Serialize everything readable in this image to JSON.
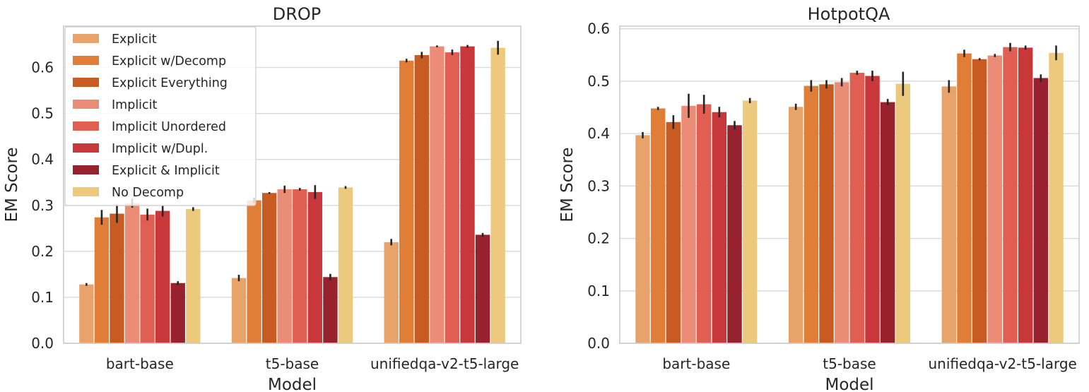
{
  "chart_data": [
    {
      "type": "bar",
      "title": "DROP",
      "xlabel": "Model",
      "ylabel": "EM Score",
      "ylim": [
        0,
        0.69
      ],
      "yticks": [
        "0.0",
        "0.1",
        "0.2",
        "0.3",
        "0.4",
        "0.5",
        "0.6"
      ],
      "grid": true,
      "legend_position": "top-left",
      "categories": [
        "bart-base",
        "t5-base",
        "unifiedqa-v2-t5-large"
      ],
      "series": [
        {
          "name": "Explicit",
          "color": "#E8A36A",
          "values": [
            0.128,
            0.142,
            0.22
          ],
          "errors": [
            0.003,
            0.007,
            0.007
          ]
        },
        {
          "name": "Explicit w/Decomp",
          "color": "#E07E38",
          "values": [
            0.274,
            0.311,
            0.615
          ],
          "errors": [
            0.016,
            0.006,
            0.004
          ]
        },
        {
          "name": "Explicit Everything",
          "color": "#C85B22",
          "values": [
            0.282,
            0.327,
            0.627
          ],
          "errors": [
            0.02,
            0.002,
            0.007
          ]
        },
        {
          "name": "Implicit",
          "color": "#EA8C76",
          "values": [
            0.305,
            0.335,
            0.646
          ],
          "errors": [
            0.01,
            0.008,
            0.002
          ]
        },
        {
          "name": "Implicit Unordered",
          "color": "#E05F52",
          "values": [
            0.28,
            0.335,
            0.633
          ],
          "errors": [
            0.013,
            0.003,
            0.006
          ]
        },
        {
          "name": "Implicit w/Dupl.",
          "color": "#C8383B",
          "values": [
            0.288,
            0.329,
            0.646
          ],
          "errors": [
            0.012,
            0.015,
            0.003
          ]
        },
        {
          "name": "Explicit & Implicit",
          "color": "#97212C",
          "values": [
            0.131,
            0.144,
            0.236
          ],
          "errors": [
            0.004,
            0.007,
            0.004
          ]
        },
        {
          "name": "No Decomp",
          "color": "#ECC97C",
          "values": [
            0.292,
            0.339,
            0.643
          ],
          "errors": [
            0.004,
            0.003,
            0.015
          ]
        }
      ]
    },
    {
      "type": "bar",
      "title": "HotpotQA",
      "xlabel": "Model",
      "ylabel": "EM Score",
      "ylim": [
        0,
        0.605
      ],
      "yticks": [
        "0.0",
        "0.1",
        "0.2",
        "0.3",
        "0.4",
        "0.5",
        "0.6"
      ],
      "grid": true,
      "categories": [
        "bart-base",
        "t5-base",
        "unifiedqa-v2-t5-large"
      ],
      "series": [
        {
          "name": "Explicit",
          "color": "#E8A36A",
          "values": [
            0.397,
            0.451,
            0.49
          ],
          "errors": [
            0.006,
            0.006,
            0.012
          ]
        },
        {
          "name": "Explicit w/Decomp",
          "color": "#E07E38",
          "values": [
            0.448,
            0.491,
            0.553
          ],
          "errors": [
            0.003,
            0.011,
            0.007
          ]
        },
        {
          "name": "Explicit Everything",
          "color": "#C85B22",
          "values": [
            0.422,
            0.494,
            0.542
          ],
          "errors": [
            0.013,
            0.008,
            0.002
          ]
        },
        {
          "name": "Implicit",
          "color": "#EA8C76",
          "values": [
            0.453,
            0.498,
            0.549
          ],
          "errors": [
            0.023,
            0.008,
            0.003
          ]
        },
        {
          "name": "Implicit Unordered",
          "color": "#E05F52",
          "values": [
            0.456,
            0.516,
            0.565
          ],
          "errors": [
            0.018,
            0.004,
            0.008
          ]
        },
        {
          "name": "Implicit w/Dupl.",
          "color": "#C8383B",
          "values": [
            0.441,
            0.51,
            0.564
          ],
          "errors": [
            0.01,
            0.01,
            0.004
          ]
        },
        {
          "name": "Explicit & Implicit",
          "color": "#97212C",
          "values": [
            0.416,
            0.46,
            0.506
          ],
          "errors": [
            0.008,
            0.006,
            0.007
          ]
        },
        {
          "name": "No Decomp",
          "color": "#ECC97C",
          "values": [
            0.463,
            0.495,
            0.554
          ],
          "errors": [
            0.005,
            0.023,
            0.014
          ]
        }
      ]
    }
  ]
}
